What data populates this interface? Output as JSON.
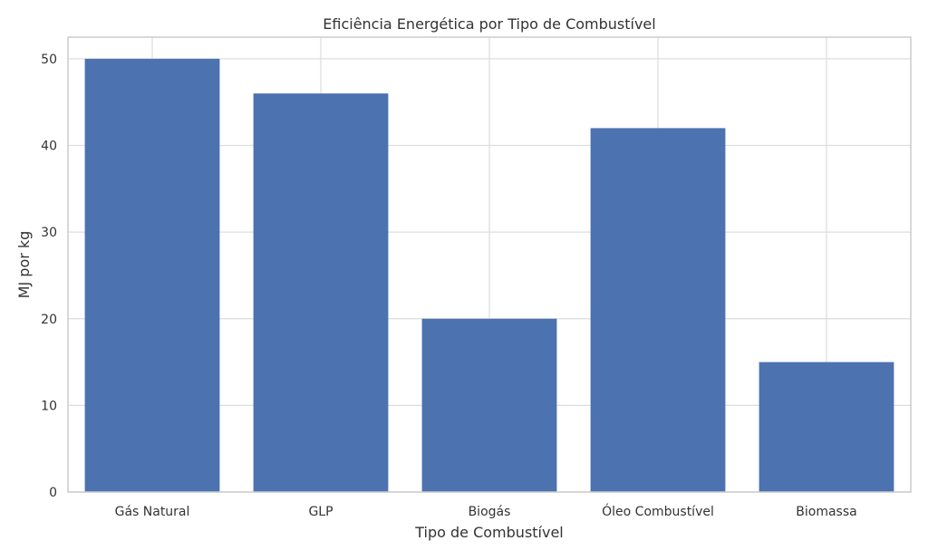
{
  "chart_data": {
    "type": "bar",
    "title": "Eficiência Energética por Tipo de Combustível",
    "xlabel": "Tipo de Combustível",
    "ylabel": "MJ por kg",
    "categories": [
      "Gás Natural",
      "GLP",
      "Biogás",
      "Óleo Combustível",
      "Biomassa"
    ],
    "values": [
      50,
      46,
      20,
      42,
      15
    ],
    "ylim": [
      0,
      52.5
    ],
    "yticks": [
      0,
      10,
      20,
      30,
      40,
      50
    ],
    "grid": true,
    "bar_color": "#4C72B0",
    "grid_color": "#DDDDDD",
    "frame_color": "#CCCCCC"
  }
}
